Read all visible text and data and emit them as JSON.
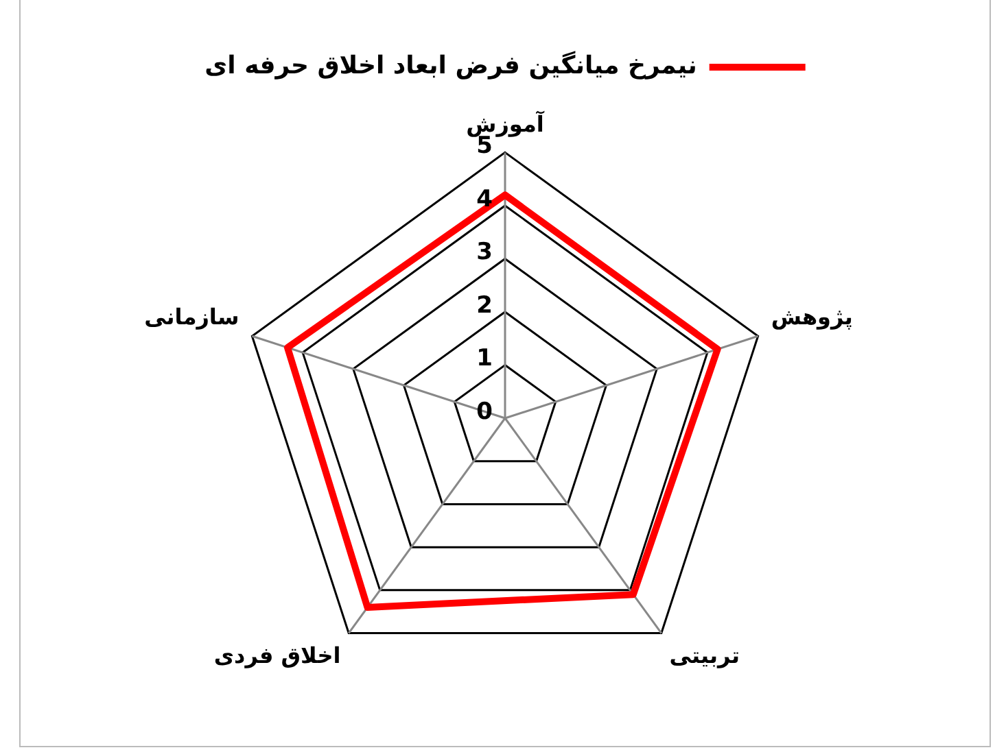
{
  "chart_data": {
    "type": "radar",
    "categories": [
      "آموزش",
      "پژوهش",
      "تربیتی",
      "اخلاق فردی",
      "سازمانی"
    ],
    "series": [
      {
        "name": "نیمرخ میانگین فرض ابعاد اخلاق حرفه ای",
        "color": "#ff0000",
        "values": [
          4.2,
          4.2,
          4.1,
          4.4,
          4.3
        ]
      }
    ],
    "ylim": [
      0,
      5
    ],
    "yticks": [
      0,
      1,
      2,
      3,
      4,
      5
    ],
    "grid": true,
    "legend": "top",
    "marker": "none"
  }
}
